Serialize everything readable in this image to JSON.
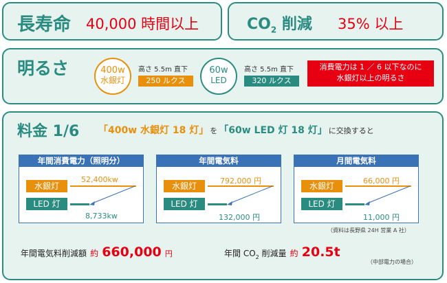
{
  "top": {
    "left_label": "長寿命",
    "left_value": "40,000 時間以上",
    "right_label_co": "CO",
    "right_label_sub": "2",
    "right_label_rest": " 削減",
    "right_value": "35% 以上"
  },
  "brightness": {
    "title": "明るさ",
    "mercury_circle_line1": "400w",
    "mercury_circle_line2": "水銀灯",
    "mercury_height": "高さ 5.5m 直下",
    "mercury_lux": "250 ルクス",
    "led_circle_line1": "60w",
    "led_circle_line2": "LED",
    "led_height": "高さ 5.5m 直下",
    "led_lux": "320 ルクス",
    "note_line1": "消費電力は 1 ／ 6 以下なのに",
    "note_line2": "水銀灯以上の明るさ"
  },
  "cost": {
    "title": "料金 1/6",
    "bracket1": "「400w 水銀灯 18 灯」",
    "wo": "を",
    "bracket2": "「60w LED 灯 18 灯」",
    "suffix": "に交換すると",
    "cards": [
      {
        "title": "年間消費電力（照明分）",
        "mercury_label": "水銀灯",
        "led_label": "LED 灯",
        "mercury_value": "52,400kw",
        "led_value": "8,733kw"
      },
      {
        "title": "年間電気料",
        "mercury_label": "水銀灯",
        "led_label": "LED 灯",
        "mercury_value": "792,000 円",
        "led_value": "132,000 円"
      },
      {
        "title": "月間電気料",
        "mercury_label": "水銀灯",
        "led_label": "LED 灯",
        "mercury_value": "66,000 円",
        "led_value": "11,000 円"
      }
    ],
    "source": "（資料は長野県 24H 営業 A 社）",
    "saving_label": "年間電気料削減額",
    "saving_approx": "約",
    "saving_value": "660,000",
    "saving_unit": "円",
    "co2_label_pre": "年間 CO",
    "co2_sub": "2",
    "co2_label_post": " 削減量",
    "co2_approx": "約",
    "co2_value": "20.5t",
    "co2_note": "（中部電力の場合）"
  },
  "colors": {
    "teal": "#2a8c80",
    "mercury_orange": "#e8900c",
    "led_green": "#2a8c80",
    "accent_red": "#e60012",
    "card_blue": "#3a72b8",
    "panel_bg": "#e7f3ef"
  }
}
